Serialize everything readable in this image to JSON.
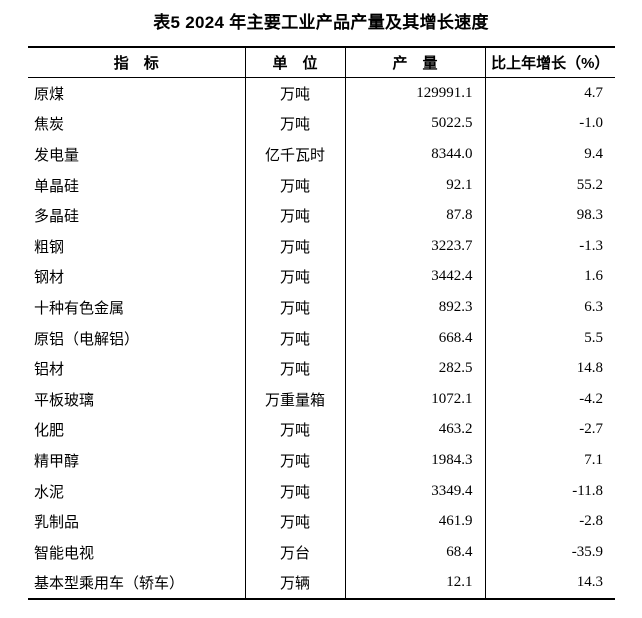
{
  "page": {
    "background": "#ffffff",
    "text_color": "#000000",
    "border_color": "#000000"
  },
  "table": {
    "title": "表5 2024 年主要工业产品产量及其增长速度",
    "columns": [
      "指　标",
      "单　位",
      "产　量",
      "比上年增长（%）"
    ],
    "rows": [
      {
        "indicator": "原煤",
        "unit": "万吨",
        "output": "129991.1",
        "growth": "4.7"
      },
      {
        "indicator": "焦炭",
        "unit": "万吨",
        "output": "5022.5",
        "growth": "-1.0"
      },
      {
        "indicator": "发电量",
        "unit": "亿千瓦时",
        "output": "8344.0",
        "growth": "9.4"
      },
      {
        "indicator": "单晶硅",
        "unit": "万吨",
        "output": "92.1",
        "growth": "55.2"
      },
      {
        "indicator": "多晶硅",
        "unit": "万吨",
        "output": "87.8",
        "growth": "98.3"
      },
      {
        "indicator": "粗钢",
        "unit": "万吨",
        "output": "3223.7",
        "growth": "-1.3"
      },
      {
        "indicator": "钢材",
        "unit": "万吨",
        "output": "3442.4",
        "growth": "1.6"
      },
      {
        "indicator": "十种有色金属",
        "unit": "万吨",
        "output": "892.3",
        "growth": "6.3"
      },
      {
        "indicator": "原铝（电解铝）",
        "unit": "万吨",
        "output": "668.4",
        "growth": "5.5"
      },
      {
        "indicator": "铝材",
        "unit": "万吨",
        "output": "282.5",
        "growth": "14.8"
      },
      {
        "indicator": "平板玻璃",
        "unit": "万重量箱",
        "output": "1072.1",
        "growth": "-4.2"
      },
      {
        "indicator": "化肥",
        "unit": "万吨",
        "output": "463.2",
        "growth": "-2.7"
      },
      {
        "indicator": "精甲醇",
        "unit": "万吨",
        "output": "1984.3",
        "growth": "7.1"
      },
      {
        "indicator": "水泥",
        "unit": "万吨",
        "output": "3349.4",
        "growth": "-11.8"
      },
      {
        "indicator": "乳制品",
        "unit": "万吨",
        "output": "461.9",
        "growth": "-2.8"
      },
      {
        "indicator": "智能电视",
        "unit": "万台",
        "output": "68.4",
        "growth": "-35.9"
      },
      {
        "indicator": "基本型乘用车（轿车）",
        "unit": "万辆",
        "output": "12.1",
        "growth": "14.3"
      }
    ]
  }
}
